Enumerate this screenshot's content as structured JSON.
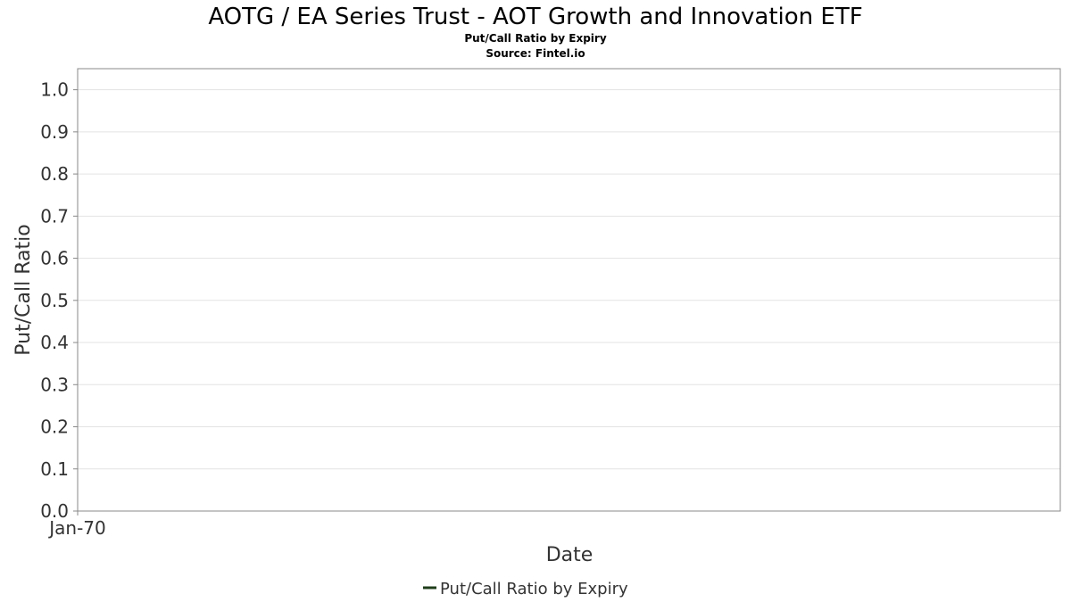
{
  "chart_data": {
    "type": "line",
    "title": "AOTG / EA Series Trust - AOT Growth and Innovation ETF",
    "subtitle": "Put/Call Ratio by Expiry",
    "source": "Source: Fintel.io",
    "xlabel": "Date",
    "ylabel": "Put/Call Ratio",
    "x_tick_labels": [
      "Jan-70"
    ],
    "y_ticks": [
      "0.0",
      "0.1",
      "0.2",
      "0.3",
      "0.4",
      "0.5",
      "0.6",
      "0.7",
      "0.8",
      "0.9",
      "1.0"
    ],
    "ylim": [
      0,
      1.05
    ],
    "grid": true,
    "legend_position": "bottom-center",
    "series": [
      {
        "name": "Put/Call Ratio by Expiry",
        "color": "#1f3d1a",
        "values": []
      }
    ]
  }
}
